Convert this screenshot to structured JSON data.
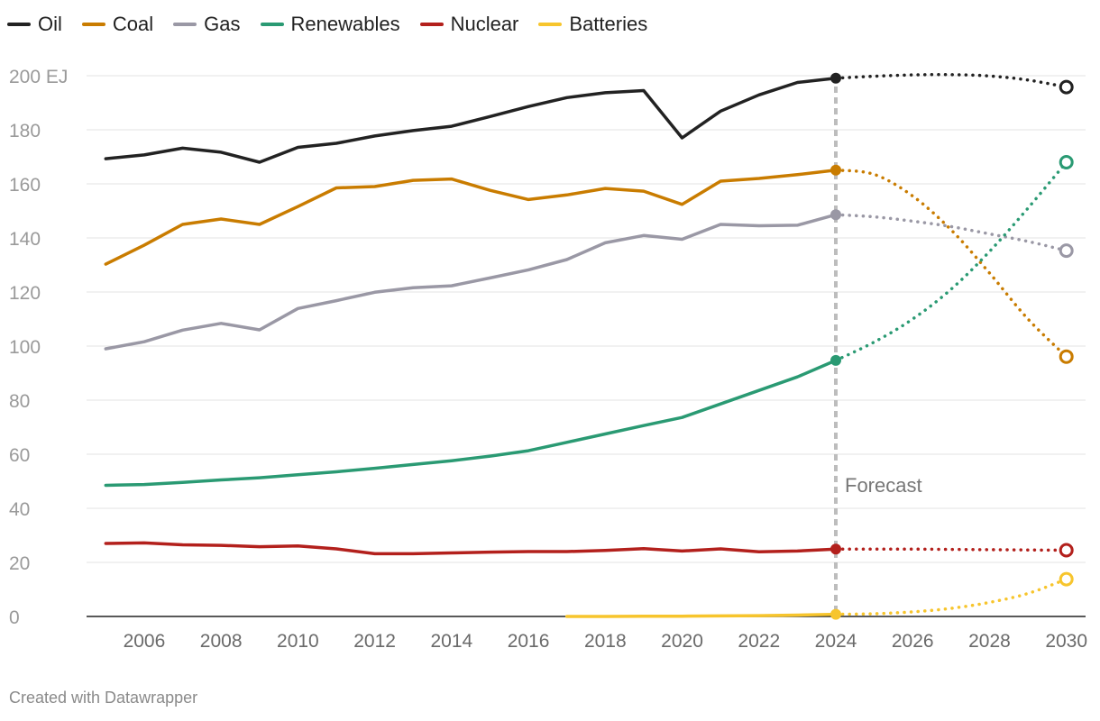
{
  "chart_data": {
    "type": "line",
    "title": "",
    "ylabel": "",
    "xlabel": "",
    "ylim": [
      0,
      200
    ],
    "xlim": [
      2004.5,
      2030.5
    ],
    "y_ticks": [
      {
        "value": 0,
        "label": "0"
      },
      {
        "value": 20,
        "label": "20"
      },
      {
        "value": 40,
        "label": "40"
      },
      {
        "value": 60,
        "label": "60"
      },
      {
        "value": 80,
        "label": "80"
      },
      {
        "value": 100,
        "label": "100"
      },
      {
        "value": 120,
        "label": "120"
      },
      {
        "value": 140,
        "label": "140"
      },
      {
        "value": 160,
        "label": "160"
      },
      {
        "value": 180,
        "label": "180"
      },
      {
        "value": 200,
        "label": "200 EJ"
      }
    ],
    "x_ticks": [
      {
        "value": 2006,
        "label": "2006"
      },
      {
        "value": 2008,
        "label": "2008"
      },
      {
        "value": 2010,
        "label": "2010"
      },
      {
        "value": 2012,
        "label": "2012"
      },
      {
        "value": 2014,
        "label": "2014"
      },
      {
        "value": 2016,
        "label": "2016"
      },
      {
        "value": 2018,
        "label": "2018"
      },
      {
        "value": 2020,
        "label": "2020"
      },
      {
        "value": 2022,
        "label": "2022"
      },
      {
        "value": 2024,
        "label": "2024"
      },
      {
        "value": 2026,
        "label": "2026"
      },
      {
        "value": 2028,
        "label": "2028"
      },
      {
        "value": 2030,
        "label": "2030"
      }
    ],
    "forecast_year": 2024,
    "forecast_label": "Forecast",
    "legend_position": "top-left",
    "series": [
      {
        "name": "Oil",
        "color": "#222222",
        "x": [
          2005,
          2006,
          2007,
          2008,
          2009,
          2010,
          2011,
          2012,
          2013,
          2014,
          2015,
          2016,
          2017,
          2018,
          2019,
          2020,
          2021,
          2022,
          2023,
          2024
        ],
        "values": [
          169.3,
          170.7,
          173.2,
          171.7,
          168,
          173.5,
          175,
          177.7,
          179.7,
          181.3,
          184.9,
          188.6,
          191.9,
          193.7,
          194.5,
          177,
          186.9,
          192.9,
          197.5,
          199.1
        ],
        "forecast": {
          "x": [
            2024,
            2025,
            2026,
            2027,
            2028,
            2029,
            2030
          ],
          "values": [
            199.1,
            199.8,
            200.3,
            200.4,
            199.9,
            198.4,
            195.8
          ]
        }
      },
      {
        "name": "Coal",
        "color": "#c97c00",
        "x": [
          2005,
          2006,
          2007,
          2008,
          2009,
          2010,
          2011,
          2012,
          2013,
          2014,
          2015,
          2016,
          2017,
          2018,
          2019,
          2020,
          2021,
          2022,
          2023,
          2024
        ],
        "values": [
          130.3,
          137.3,
          145,
          147,
          145,
          151.6,
          158.5,
          159,
          161.3,
          161.8,
          157.6,
          154.2,
          155.9,
          158.3,
          157.3,
          152.4,
          161,
          162,
          163.4,
          165.1
        ],
        "forecast": {
          "x": [
            2024,
            2025,
            2026,
            2027,
            2028,
            2029,
            2030
          ],
          "values": [
            165.1,
            163.5,
            155.5,
            143,
            127,
            110,
            96.1
          ]
        }
      },
      {
        "name": "Gas",
        "color": "#9a98a5",
        "x": [
          2005,
          2006,
          2007,
          2008,
          2009,
          2010,
          2011,
          2012,
          2013,
          2014,
          2015,
          2016,
          2017,
          2018,
          2019,
          2020,
          2021,
          2022,
          2023,
          2024
        ],
        "values": [
          99,
          101.6,
          105.9,
          108.4,
          106,
          113.9,
          116.8,
          119.9,
          121.6,
          122.3,
          125.2,
          128.2,
          132,
          138.2,
          140.9,
          139.5,
          145,
          144.5,
          144.7,
          148.6
        ],
        "forecast": {
          "x": [
            2024,
            2025,
            2026,
            2027,
            2028,
            2029,
            2030
          ],
          "values": [
            148.6,
            147.8,
            146.2,
            144.2,
            141.5,
            138.7,
            135.3
          ]
        }
      },
      {
        "name": "Renewables",
        "color": "#2a9a73",
        "x": [
          2005,
          2006,
          2007,
          2008,
          2009,
          2010,
          2011,
          2012,
          2013,
          2014,
          2015,
          2016,
          2017,
          2018,
          2019,
          2020,
          2021,
          2022,
          2023,
          2024
        ],
        "values": [
          48.5,
          48.8,
          49.6,
          50.5,
          51.3,
          52.4,
          53.5,
          54.8,
          56.2,
          57.6,
          59.3,
          61.3,
          64.4,
          67.5,
          70.6,
          73.6,
          78.6,
          83.6,
          88.6,
          94.7
        ],
        "forecast": {
          "x": [
            2024,
            2025,
            2026,
            2027,
            2028,
            2029,
            2030
          ],
          "values": [
            94.7,
            101.5,
            110,
            121,
            135,
            151,
            168
          ]
        }
      },
      {
        "name": "Nuclear",
        "color": "#b3201c",
        "x": [
          2005,
          2006,
          2007,
          2008,
          2009,
          2010,
          2011,
          2012,
          2013,
          2014,
          2015,
          2016,
          2017,
          2018,
          2019,
          2020,
          2021,
          2022,
          2023,
          2024
        ],
        "values": [
          27,
          27.2,
          26.5,
          26.3,
          25.8,
          26.1,
          25,
          23.2,
          23.2,
          23.5,
          23.8,
          24,
          24,
          24.4,
          25.1,
          24.2,
          25,
          23.9,
          24.2,
          24.9
        ],
        "forecast": {
          "x": [
            2024,
            2025,
            2026,
            2027,
            2028,
            2029,
            2030
          ],
          "values": [
            24.9,
            24.9,
            24.9,
            24.8,
            24.7,
            24.6,
            24.5
          ]
        }
      },
      {
        "name": "Batteries",
        "color": "#f7c52d",
        "x": [
          2017,
          2018,
          2019,
          2020,
          2021,
          2022,
          2023,
          2024
        ],
        "values": [
          0,
          0,
          0.1,
          0.1,
          0.2,
          0.3,
          0.5,
          0.8
        ],
        "forecast": {
          "x": [
            2024,
            2025,
            2026,
            2027,
            2028,
            2029,
            2030
          ],
          "values": [
            0.8,
            1,
            1.7,
            3,
            5.2,
            8.5,
            13.8
          ]
        }
      }
    ]
  },
  "footer": {
    "credit": "Created with Datawrapper"
  }
}
